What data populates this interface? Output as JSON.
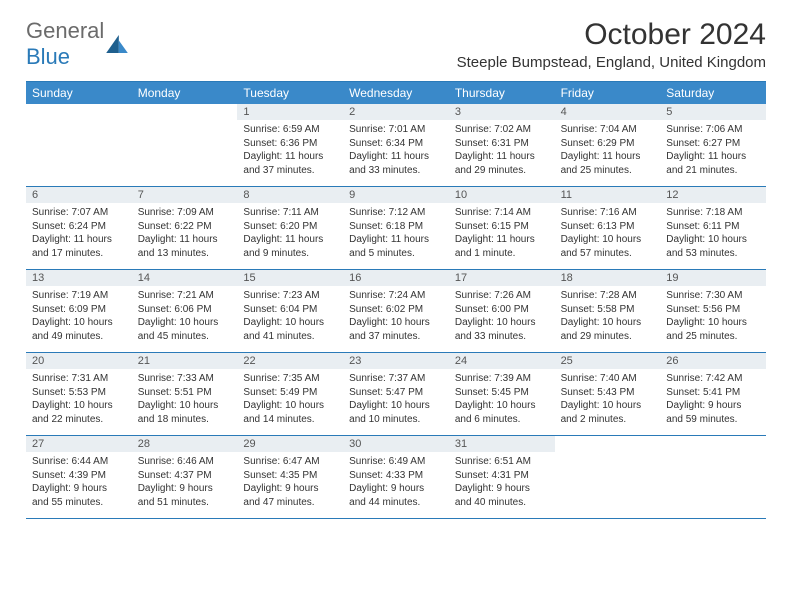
{
  "logo": {
    "text1": "General",
    "text2": "Blue"
  },
  "title": "October 2024",
  "location": "Steeple Bumpstead, England, United Kingdom",
  "colors": {
    "header_bg": "#3a89c9",
    "header_text": "#ffffff",
    "rule": "#2a7ab8",
    "daynum_bg": "#e9eef2",
    "text": "#333333",
    "logo_gray": "#6b6b6b",
    "logo_blue": "#2a7ab8"
  },
  "day_headers": [
    "Sunday",
    "Monday",
    "Tuesday",
    "Wednesday",
    "Thursday",
    "Friday",
    "Saturday"
  ],
  "weeks": [
    [
      {
        "n": "",
        "sr": "",
        "ss": "",
        "dl": ""
      },
      {
        "n": "",
        "sr": "",
        "ss": "",
        "dl": ""
      },
      {
        "n": "1",
        "sr": "Sunrise: 6:59 AM",
        "ss": "Sunset: 6:36 PM",
        "dl": "Daylight: 11 hours and 37 minutes."
      },
      {
        "n": "2",
        "sr": "Sunrise: 7:01 AM",
        "ss": "Sunset: 6:34 PM",
        "dl": "Daylight: 11 hours and 33 minutes."
      },
      {
        "n": "3",
        "sr": "Sunrise: 7:02 AM",
        "ss": "Sunset: 6:31 PM",
        "dl": "Daylight: 11 hours and 29 minutes."
      },
      {
        "n": "4",
        "sr": "Sunrise: 7:04 AM",
        "ss": "Sunset: 6:29 PM",
        "dl": "Daylight: 11 hours and 25 minutes."
      },
      {
        "n": "5",
        "sr": "Sunrise: 7:06 AM",
        "ss": "Sunset: 6:27 PM",
        "dl": "Daylight: 11 hours and 21 minutes."
      }
    ],
    [
      {
        "n": "6",
        "sr": "Sunrise: 7:07 AM",
        "ss": "Sunset: 6:24 PM",
        "dl": "Daylight: 11 hours and 17 minutes."
      },
      {
        "n": "7",
        "sr": "Sunrise: 7:09 AM",
        "ss": "Sunset: 6:22 PM",
        "dl": "Daylight: 11 hours and 13 minutes."
      },
      {
        "n": "8",
        "sr": "Sunrise: 7:11 AM",
        "ss": "Sunset: 6:20 PM",
        "dl": "Daylight: 11 hours and 9 minutes."
      },
      {
        "n": "9",
        "sr": "Sunrise: 7:12 AM",
        "ss": "Sunset: 6:18 PM",
        "dl": "Daylight: 11 hours and 5 minutes."
      },
      {
        "n": "10",
        "sr": "Sunrise: 7:14 AM",
        "ss": "Sunset: 6:15 PM",
        "dl": "Daylight: 11 hours and 1 minute."
      },
      {
        "n": "11",
        "sr": "Sunrise: 7:16 AM",
        "ss": "Sunset: 6:13 PM",
        "dl": "Daylight: 10 hours and 57 minutes."
      },
      {
        "n": "12",
        "sr": "Sunrise: 7:18 AM",
        "ss": "Sunset: 6:11 PM",
        "dl": "Daylight: 10 hours and 53 minutes."
      }
    ],
    [
      {
        "n": "13",
        "sr": "Sunrise: 7:19 AM",
        "ss": "Sunset: 6:09 PM",
        "dl": "Daylight: 10 hours and 49 minutes."
      },
      {
        "n": "14",
        "sr": "Sunrise: 7:21 AM",
        "ss": "Sunset: 6:06 PM",
        "dl": "Daylight: 10 hours and 45 minutes."
      },
      {
        "n": "15",
        "sr": "Sunrise: 7:23 AM",
        "ss": "Sunset: 6:04 PM",
        "dl": "Daylight: 10 hours and 41 minutes."
      },
      {
        "n": "16",
        "sr": "Sunrise: 7:24 AM",
        "ss": "Sunset: 6:02 PM",
        "dl": "Daylight: 10 hours and 37 minutes."
      },
      {
        "n": "17",
        "sr": "Sunrise: 7:26 AM",
        "ss": "Sunset: 6:00 PM",
        "dl": "Daylight: 10 hours and 33 minutes."
      },
      {
        "n": "18",
        "sr": "Sunrise: 7:28 AM",
        "ss": "Sunset: 5:58 PM",
        "dl": "Daylight: 10 hours and 29 minutes."
      },
      {
        "n": "19",
        "sr": "Sunrise: 7:30 AM",
        "ss": "Sunset: 5:56 PM",
        "dl": "Daylight: 10 hours and 25 minutes."
      }
    ],
    [
      {
        "n": "20",
        "sr": "Sunrise: 7:31 AM",
        "ss": "Sunset: 5:53 PM",
        "dl": "Daylight: 10 hours and 22 minutes."
      },
      {
        "n": "21",
        "sr": "Sunrise: 7:33 AM",
        "ss": "Sunset: 5:51 PM",
        "dl": "Daylight: 10 hours and 18 minutes."
      },
      {
        "n": "22",
        "sr": "Sunrise: 7:35 AM",
        "ss": "Sunset: 5:49 PM",
        "dl": "Daylight: 10 hours and 14 minutes."
      },
      {
        "n": "23",
        "sr": "Sunrise: 7:37 AM",
        "ss": "Sunset: 5:47 PM",
        "dl": "Daylight: 10 hours and 10 minutes."
      },
      {
        "n": "24",
        "sr": "Sunrise: 7:39 AM",
        "ss": "Sunset: 5:45 PM",
        "dl": "Daylight: 10 hours and 6 minutes."
      },
      {
        "n": "25",
        "sr": "Sunrise: 7:40 AM",
        "ss": "Sunset: 5:43 PM",
        "dl": "Daylight: 10 hours and 2 minutes."
      },
      {
        "n": "26",
        "sr": "Sunrise: 7:42 AM",
        "ss": "Sunset: 5:41 PM",
        "dl": "Daylight: 9 hours and 59 minutes."
      }
    ],
    [
      {
        "n": "27",
        "sr": "Sunrise: 6:44 AM",
        "ss": "Sunset: 4:39 PM",
        "dl": "Daylight: 9 hours and 55 minutes."
      },
      {
        "n": "28",
        "sr": "Sunrise: 6:46 AM",
        "ss": "Sunset: 4:37 PM",
        "dl": "Daylight: 9 hours and 51 minutes."
      },
      {
        "n": "29",
        "sr": "Sunrise: 6:47 AM",
        "ss": "Sunset: 4:35 PM",
        "dl": "Daylight: 9 hours and 47 minutes."
      },
      {
        "n": "30",
        "sr": "Sunrise: 6:49 AM",
        "ss": "Sunset: 4:33 PM",
        "dl": "Daylight: 9 hours and 44 minutes."
      },
      {
        "n": "31",
        "sr": "Sunrise: 6:51 AM",
        "ss": "Sunset: 4:31 PM",
        "dl": "Daylight: 9 hours and 40 minutes."
      },
      {
        "n": "",
        "sr": "",
        "ss": "",
        "dl": ""
      },
      {
        "n": "",
        "sr": "",
        "ss": "",
        "dl": ""
      }
    ]
  ]
}
